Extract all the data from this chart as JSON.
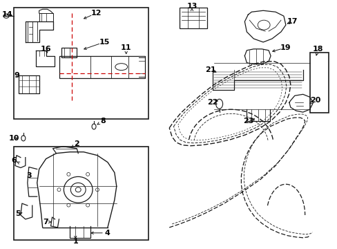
{
  "bg_color": "#ffffff",
  "lc": "#1a1a1a",
  "rc": "#cc0000",
  "figsize": [
    4.89,
    3.6
  ],
  "dpi": 100
}
